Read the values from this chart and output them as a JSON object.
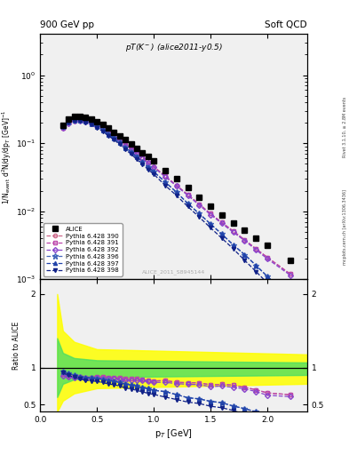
{
  "title_top": "900 GeV pp",
  "title_right": "Soft QCD",
  "plot_label": "pT(K$^-$) (alice2011-y0.5)",
  "watermark": "ALICE_2011_S8945144",
  "right_label_top": "Rivet 3.1.10, ≥ 2.8M events",
  "right_label_bottom": "mcplots.cern.ch [arXiv:1306.3436]",
  "ylabel_main": "1/N$_{\\rm event}$ d$^2$N/dy/dp$_T$ [GeV]$^{-1}$",
  "ylabel_ratio": "Ratio to ALICE",
  "xlabel": "p$_T$ [GeV]",
  "alice_x": [
    0.2,
    0.25,
    0.3,
    0.35,
    0.4,
    0.45,
    0.5,
    0.55,
    0.6,
    0.65,
    0.7,
    0.75,
    0.8,
    0.85,
    0.9,
    0.95,
    1.0,
    1.1,
    1.2,
    1.3,
    1.4,
    1.5,
    1.6,
    1.7,
    1.8,
    1.9,
    2.0,
    2.2
  ],
  "alice_y": [
    0.185,
    0.225,
    0.245,
    0.248,
    0.242,
    0.228,
    0.208,
    0.187,
    0.166,
    0.146,
    0.128,
    0.112,
    0.097,
    0.084,
    0.073,
    0.063,
    0.055,
    0.04,
    0.03,
    0.022,
    0.016,
    0.012,
    0.0088,
    0.0067,
    0.0052,
    0.004,
    0.0032,
    0.0019
  ],
  "py390_x": [
    0.2,
    0.25,
    0.3,
    0.35,
    0.4,
    0.45,
    0.5,
    0.55,
    0.6,
    0.65,
    0.7,
    0.75,
    0.8,
    0.85,
    0.9,
    0.95,
    1.0,
    1.1,
    1.2,
    1.3,
    1.4,
    1.5,
    1.6,
    1.7,
    1.8,
    1.9,
    2.0,
    2.2
  ],
  "py390_y": [
    0.168,
    0.2,
    0.215,
    0.216,
    0.21,
    0.198,
    0.182,
    0.163,
    0.144,
    0.126,
    0.11,
    0.095,
    0.082,
    0.071,
    0.061,
    0.052,
    0.045,
    0.033,
    0.024,
    0.0175,
    0.0127,
    0.0092,
    0.0068,
    0.0051,
    0.0038,
    0.0028,
    0.0021,
    0.0012
  ],
  "py391_x": [
    0.2,
    0.25,
    0.3,
    0.35,
    0.4,
    0.45,
    0.5,
    0.55,
    0.6,
    0.65,
    0.7,
    0.75,
    0.8,
    0.85,
    0.9,
    0.95,
    1.0,
    1.1,
    1.2,
    1.3,
    1.4,
    1.5,
    1.6,
    1.7,
    1.8,
    1.9,
    2.0,
    2.2
  ],
  "py391_y": [
    0.168,
    0.2,
    0.215,
    0.216,
    0.21,
    0.198,
    0.182,
    0.163,
    0.144,
    0.126,
    0.11,
    0.095,
    0.082,
    0.071,
    0.061,
    0.052,
    0.045,
    0.033,
    0.024,
    0.0175,
    0.0127,
    0.0092,
    0.0068,
    0.0051,
    0.0038,
    0.0028,
    0.0021,
    0.0012
  ],
  "py392_x": [
    0.2,
    0.25,
    0.3,
    0.35,
    0.4,
    0.45,
    0.5,
    0.55,
    0.6,
    0.65,
    0.7,
    0.75,
    0.8,
    0.85,
    0.9,
    0.95,
    1.0,
    1.1,
    1.2,
    1.3,
    1.4,
    1.5,
    1.6,
    1.7,
    1.8,
    1.9,
    2.0,
    2.2
  ],
  "py392_y": [
    0.165,
    0.197,
    0.212,
    0.213,
    0.207,
    0.195,
    0.179,
    0.16,
    0.141,
    0.124,
    0.108,
    0.093,
    0.08,
    0.069,
    0.06,
    0.051,
    0.044,
    0.032,
    0.0235,
    0.017,
    0.0123,
    0.0089,
    0.0066,
    0.0049,
    0.0037,
    0.0027,
    0.002,
    0.00115
  ],
  "py396_x": [
    0.2,
    0.25,
    0.3,
    0.35,
    0.4,
    0.45,
    0.5,
    0.55,
    0.6,
    0.65,
    0.7,
    0.75,
    0.8,
    0.85,
    0.9,
    0.95,
    1.0,
    1.1,
    1.2,
    1.3,
    1.4,
    1.5,
    1.6,
    1.7,
    1.8,
    1.9,
    2.0,
    2.2
  ],
  "py396_y": [
    0.175,
    0.207,
    0.22,
    0.218,
    0.21,
    0.196,
    0.178,
    0.157,
    0.137,
    0.119,
    0.102,
    0.087,
    0.074,
    0.063,
    0.053,
    0.045,
    0.038,
    0.027,
    0.019,
    0.013,
    0.0092,
    0.0065,
    0.0046,
    0.0032,
    0.0023,
    0.0016,
    0.0011,
    0.00057
  ],
  "py397_x": [
    0.2,
    0.25,
    0.3,
    0.35,
    0.4,
    0.45,
    0.5,
    0.55,
    0.6,
    0.65,
    0.7,
    0.75,
    0.8,
    0.85,
    0.9,
    0.95,
    1.0,
    1.1,
    1.2,
    1.3,
    1.4,
    1.5,
    1.6,
    1.7,
    1.8,
    1.9,
    2.0,
    2.2
  ],
  "py397_y": [
    0.175,
    0.207,
    0.22,
    0.218,
    0.21,
    0.196,
    0.178,
    0.157,
    0.137,
    0.119,
    0.102,
    0.087,
    0.074,
    0.063,
    0.053,
    0.045,
    0.038,
    0.027,
    0.019,
    0.013,
    0.0092,
    0.0065,
    0.0046,
    0.0032,
    0.0023,
    0.0016,
    0.0011,
    0.00057
  ],
  "py398_x": [
    0.2,
    0.25,
    0.3,
    0.35,
    0.4,
    0.45,
    0.5,
    0.55,
    0.6,
    0.65,
    0.7,
    0.75,
    0.8,
    0.85,
    0.9,
    0.95,
    1.0,
    1.1,
    1.2,
    1.3,
    1.4,
    1.5,
    1.6,
    1.7,
    1.8,
    1.9,
    2.0,
    2.2
  ],
  "py398_y": [
    0.172,
    0.201,
    0.213,
    0.21,
    0.201,
    0.187,
    0.169,
    0.149,
    0.129,
    0.112,
    0.096,
    0.081,
    0.069,
    0.058,
    0.049,
    0.041,
    0.035,
    0.024,
    0.017,
    0.0117,
    0.0082,
    0.0057,
    0.004,
    0.0028,
    0.0019,
    0.0013,
    0.00088,
    0.00043
  ],
  "xlim": [
    0.0,
    2.35
  ],
  "ylim_main": [
    0.001,
    4.0
  ],
  "ylim_ratio": [
    0.4,
    2.2
  ],
  "yellow_band_x": [
    0.15,
    0.2,
    0.3,
    0.5,
    2.35
  ],
  "yellow_band_upper": [
    2.0,
    1.5,
    1.35,
    1.25,
    1.18
  ],
  "yellow_band_lower": [
    0.4,
    0.55,
    0.65,
    0.72,
    0.78
  ],
  "green_band_upper": [
    1.4,
    1.2,
    1.13,
    1.1,
    1.07
  ],
  "green_band_lower": [
    0.6,
    0.78,
    0.84,
    0.87,
    0.9
  ],
  "color_390": "#cc6688",
  "color_391": "#bb44aa",
  "color_392": "#8844cc",
  "color_396": "#4466bb",
  "color_397": "#2244aa",
  "color_398": "#112288",
  "bg_color": "#f0f0f0"
}
